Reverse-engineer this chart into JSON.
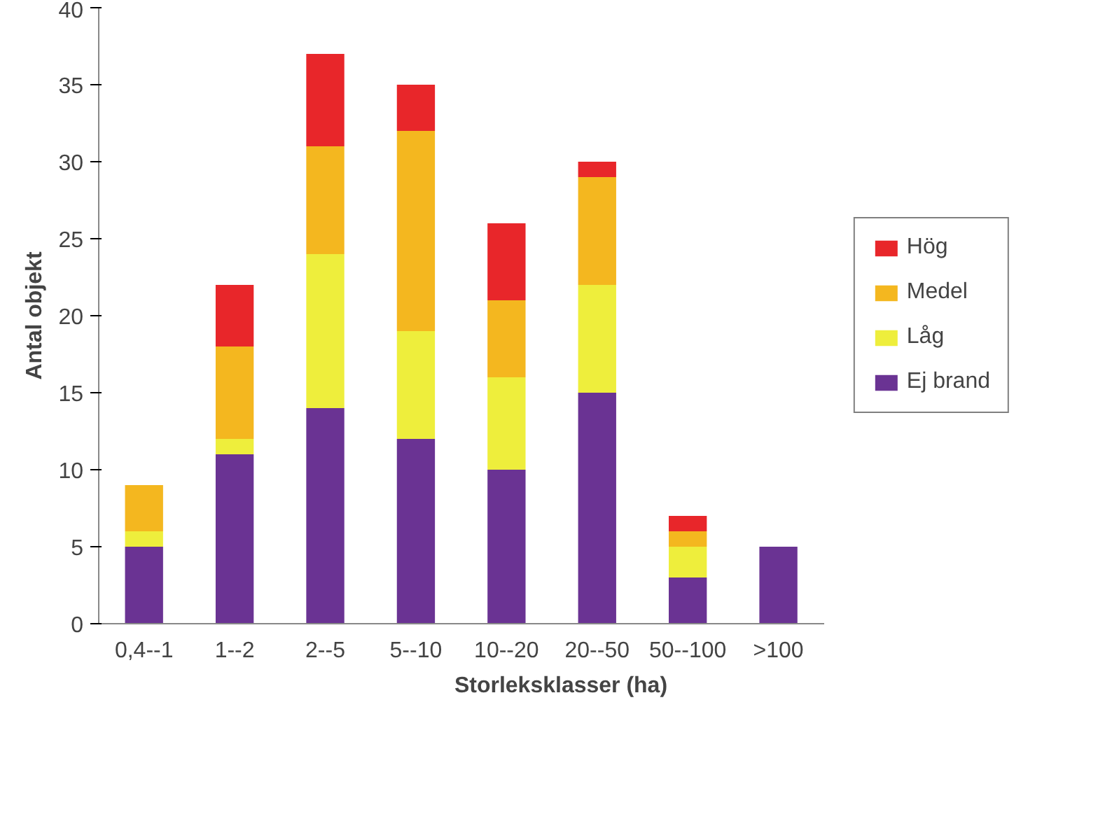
{
  "chart_data": {
    "type": "bar",
    "stacked": true,
    "xlabel": "Storleksklasser (ha)",
    "ylabel": "Antal objekt",
    "categories": [
      "0,4--1",
      "1--2",
      "2--5",
      "5--10",
      "10--20",
      "20--50",
      "50--100",
      ">100"
    ],
    "series": [
      {
        "name": "Ej brand",
        "color": "#6a3393",
        "values": [
          5,
          11,
          14,
          12,
          10,
          15,
          3,
          5
        ]
      },
      {
        "name": "Låg",
        "color": "#eeee3c",
        "values": [
          1,
          1,
          10,
          7,
          6,
          7,
          2,
          0
        ]
      },
      {
        "name": "Medel",
        "color": "#f4b71f",
        "values": [
          3,
          6,
          7,
          13,
          5,
          7,
          1,
          0
        ]
      },
      {
        "name": "Hög",
        "color": "#e8262a",
        "values": [
          0,
          4,
          6,
          3,
          5,
          1,
          1,
          0
        ]
      }
    ],
    "ylim": [
      0,
      40
    ],
    "yticks": [
      0,
      5,
      10,
      15,
      20,
      25,
      30,
      35,
      40
    ],
    "grid": false,
    "legend": "right"
  }
}
